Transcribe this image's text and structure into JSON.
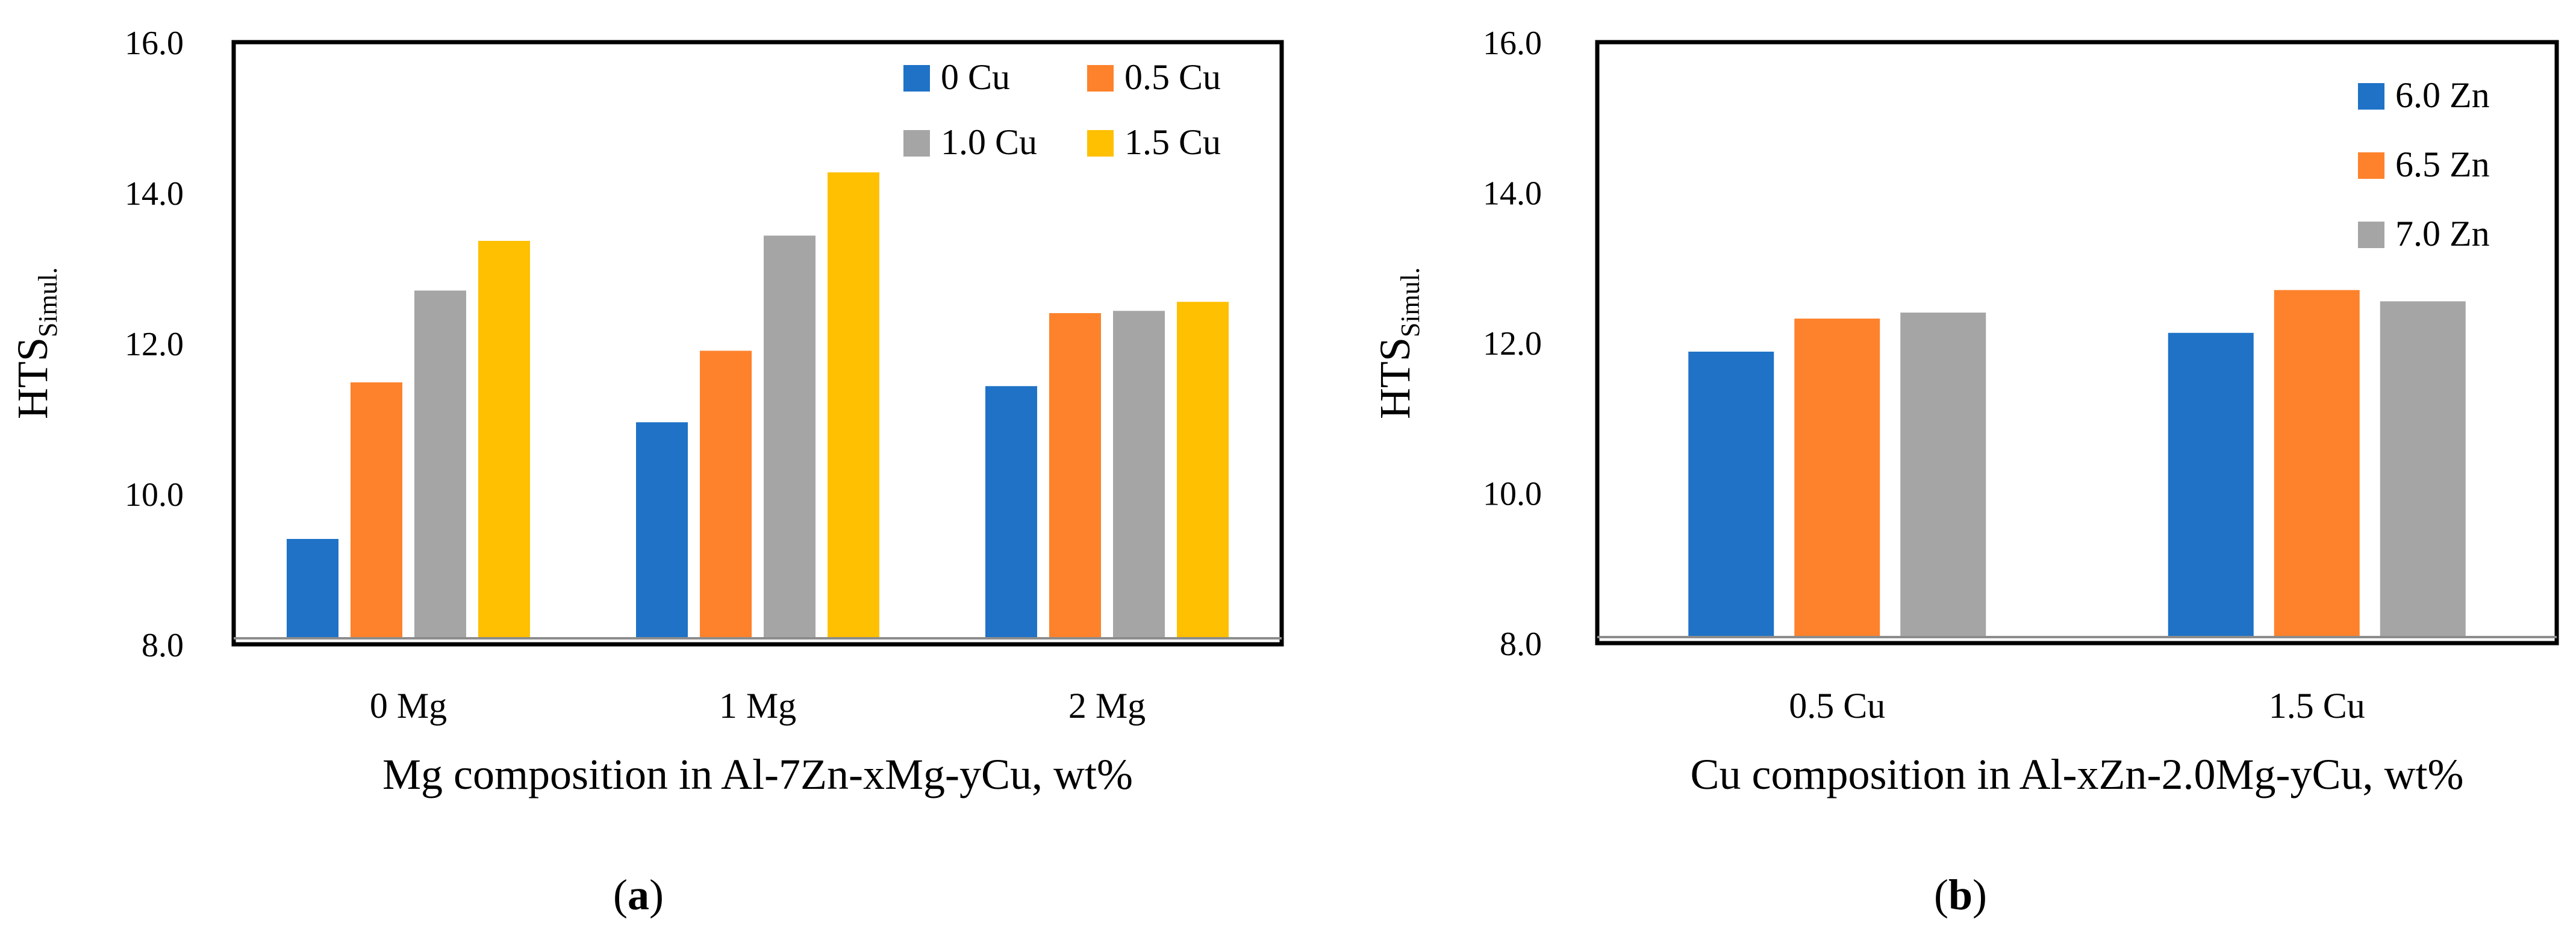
{
  "chart_data": [
    {
      "type": "bar",
      "panel_label": "a",
      "ylabel_main": "HTS",
      "ylabel_sub": "Simul.",
      "xlabel": "Mg composition in Al-7Zn-xMg-yCu, wt%",
      "categories": [
        "0 Mg",
        "1 Mg",
        "2 Mg"
      ],
      "ylim": [
        8.0,
        16.0
      ],
      "yticks": [
        "8.0",
        "10.0",
        "12.0",
        "14.0",
        "16.0"
      ],
      "grid": false,
      "legend_position": "top-right",
      "series": [
        {
          "name": "0 Cu",
          "color": "#1f72c6",
          "values": [
            9.4,
            10.95,
            11.43
          ]
        },
        {
          "name": "0.5 Cu",
          "color": "#fd822b",
          "values": [
            11.48,
            11.9,
            12.4
          ]
        },
        {
          "name": "1.0 Cu",
          "color": "#a5a5a5",
          "values": [
            12.7,
            13.43,
            12.43
          ]
        },
        {
          "name": "1.5 Cu",
          "color": "#fec000",
          "values": [
            13.36,
            14.27,
            12.55
          ]
        }
      ]
    },
    {
      "type": "bar",
      "panel_label": "b",
      "ylabel_main": "HTS",
      "ylabel_sub": "Simul.",
      "xlabel": "Cu composition in Al-xZn-2.0Mg-yCu, wt%",
      "categories": [
        "0.5 Cu",
        "1.5 Cu"
      ],
      "ylim": [
        8.0,
        16.0
      ],
      "yticks": [
        "8.0",
        "10.0",
        "12.0",
        "14.0",
        "16.0"
      ],
      "grid": false,
      "legend_position": "top-right",
      "series": [
        {
          "name": "6.0 Zn",
          "color": "#1f72c6",
          "values": [
            11.88,
            12.13
          ]
        },
        {
          "name": "6.5 Zn",
          "color": "#fd822b",
          "values": [
            12.32,
            12.7
          ]
        },
        {
          "name": "7.0 Zn",
          "color": "#a5a5a5",
          "values": [
            12.4,
            12.55
          ]
        }
      ]
    }
  ]
}
